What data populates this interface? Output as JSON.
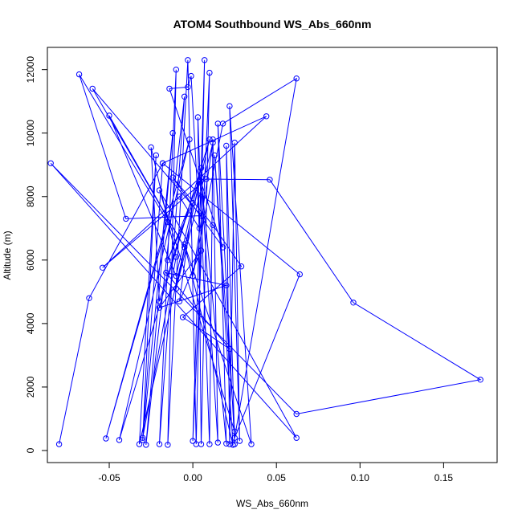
{
  "chart_data": {
    "type": "line",
    "title": "ATOM4 Southbound WS_Abs_660nm",
    "xlabel": "WS_Abs_660nm",
    "ylabel": "Altitude (m)",
    "xlim": [
      -0.087,
      0.182
    ],
    "ylim": [
      -380,
      12700
    ],
    "x_ticks": [
      -0.05,
      0.0,
      0.05,
      0.1,
      0.15
    ],
    "x_tick_labels": [
      "-0.05",
      "0.00",
      "0.05",
      "0.10",
      "0.15"
    ],
    "y_ticks": [
      0,
      2000,
      4000,
      6000,
      8000,
      10000,
      12000
    ],
    "y_tick_labels": [
      "0",
      "2000",
      "4000",
      "6000",
      "8000",
      "10000",
      "12000"
    ],
    "grid": false,
    "legend": "none",
    "series_color": "#0000ff",
    "series": [
      {
        "points": [
          [
            -0.08,
            200
          ],
          [
            -0.062,
            4800
          ],
          [
            -0.018,
            9050
          ],
          [
            -0.03,
            400
          ],
          [
            -0.01,
            6100
          ],
          [
            -0.025,
            9550
          ],
          [
            -0.02,
            4700
          ],
          [
            0.005,
            8900
          ],
          [
            -0.01,
            5500
          ],
          [
            -0.05,
            10550
          ],
          [
            -0.005,
            6400
          ],
          [
            -0.06,
            11400
          ],
          [
            0.005,
            7400
          ],
          [
            -0.04,
            7300
          ],
          [
            -0.068,
            11850
          ],
          [
            -0.015,
            7200
          ],
          [
            -0.052,
            380
          ],
          [
            -0.002,
            9800
          ],
          [
            -0.044,
            330
          ],
          [
            0.01,
            9800
          ],
          [
            -0.032,
            200
          ],
          [
            -0.022,
            9300
          ],
          [
            -0.03,
            330
          ],
          [
            -0.012,
            10000
          ],
          [
            -0.028,
            180
          ],
          [
            -0.005,
            11150
          ],
          [
            -0.02,
            200
          ],
          [
            -0.01,
            12000
          ],
          [
            -0.015,
            180
          ],
          [
            -0.003,
            12300
          ],
          [
            0.002,
            200
          ],
          [
            0.007,
            12300
          ],
          [
            0.0,
            300
          ],
          [
            0.01,
            11900
          ],
          [
            0.005,
            200
          ],
          [
            0.003,
            10500
          ],
          [
            0.01,
            200
          ],
          [
            0.012,
            9800
          ],
          [
            0.015,
            250
          ],
          [
            0.005,
            8600
          ],
          [
            0.02,
            220
          ],
          [
            0.015,
            10300
          ],
          [
            0.025,
            200
          ],
          [
            0.02,
            9600
          ],
          [
            0.022,
            200
          ],
          [
            0.025,
            9700
          ],
          [
            0.028,
            300
          ],
          [
            0.022,
            10850
          ],
          [
            0.035,
            200
          ],
          [
            -0.005,
            6500
          ],
          [
            0.024,
            180
          ],
          [
            0.013,
            9300
          ],
          [
            0.025,
            600
          ],
          [
            -0.02,
            8200
          ],
          [
            0.062,
            400
          ],
          [
            -0.085,
            9050
          ],
          [
            0.062,
            1150
          ],
          [
            0.172,
            2230
          ],
          [
            0.096,
            4660
          ],
          [
            0.046,
            8530
          ],
          [
            0.008,
            8550
          ],
          [
            -0.054,
            5760
          ],
          [
            0.044,
            10530
          ],
          [
            -0.018,
            9050
          ],
          [
            0.064,
            5550
          ],
          [
            0.025,
            400
          ],
          [
            0.062,
            11720
          ],
          [
            0.018,
            10300
          ],
          [
            0.0,
            5500
          ],
          [
            0.012,
            9700
          ],
          [
            -0.01,
            5100
          ],
          [
            0.004,
            8500
          ],
          [
            -0.015,
            6000
          ],
          [
            0.0,
            7800
          ],
          [
            -0.008,
            4700
          ],
          [
            0.005,
            6300
          ],
          [
            -0.02,
            4500
          ],
          [
            0.02,
            5200
          ],
          [
            -0.016,
            5600
          ],
          [
            0.022,
            3200
          ],
          [
            -0.006,
            4200
          ],
          [
            0.029,
            5800
          ],
          [
            0.012,
            7100
          ],
          [
            -0.012,
            8600
          ],
          [
            0.018,
            6400
          ],
          [
            -0.014,
            11400
          ],
          [
            -0.003,
            11450
          ],
          [
            -0.001,
            11800
          ],
          [
            0.004,
            7000
          ],
          [
            -0.008,
            8000
          ]
        ]
      }
    ]
  }
}
